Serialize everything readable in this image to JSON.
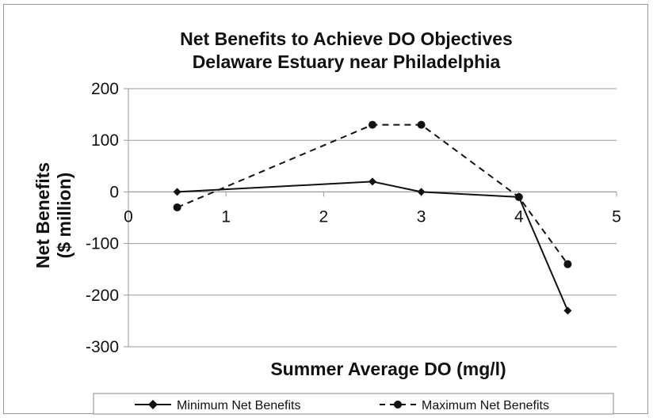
{
  "chart_data": {
    "type": "line",
    "title_lines": [
      "Net Benefits to Achieve DO Objectives",
      "Delaware Estuary near Philadelphia"
    ],
    "xlabel": "Summer Average DO (mg/l)",
    "ylabel_lines": [
      "Net Benefits",
      "($ million)"
    ],
    "xlim": [
      0,
      5
    ],
    "ylim": [
      -300,
      200
    ],
    "xticks": [
      0,
      1,
      2,
      3,
      4,
      5
    ],
    "yticks": [
      -300,
      -200,
      -100,
      0,
      100,
      200
    ],
    "grid": "horizontal",
    "legend_position": "bottom",
    "series": [
      {
        "name": "Minimum Net Benefits",
        "style": "solid",
        "marker": "diamond",
        "color": "#111111",
        "x": [
          0.5,
          2.5,
          3,
          4,
          4.5
        ],
        "y": [
          0,
          20,
          0,
          -10,
          -230
        ]
      },
      {
        "name": "Maximum Net Benefits",
        "style": "dashed",
        "marker": "circle",
        "color": "#111111",
        "x": [
          0.5,
          2.5,
          3,
          4,
          4.5
        ],
        "y": [
          -30,
          130,
          130,
          -10,
          -140
        ]
      }
    ]
  }
}
